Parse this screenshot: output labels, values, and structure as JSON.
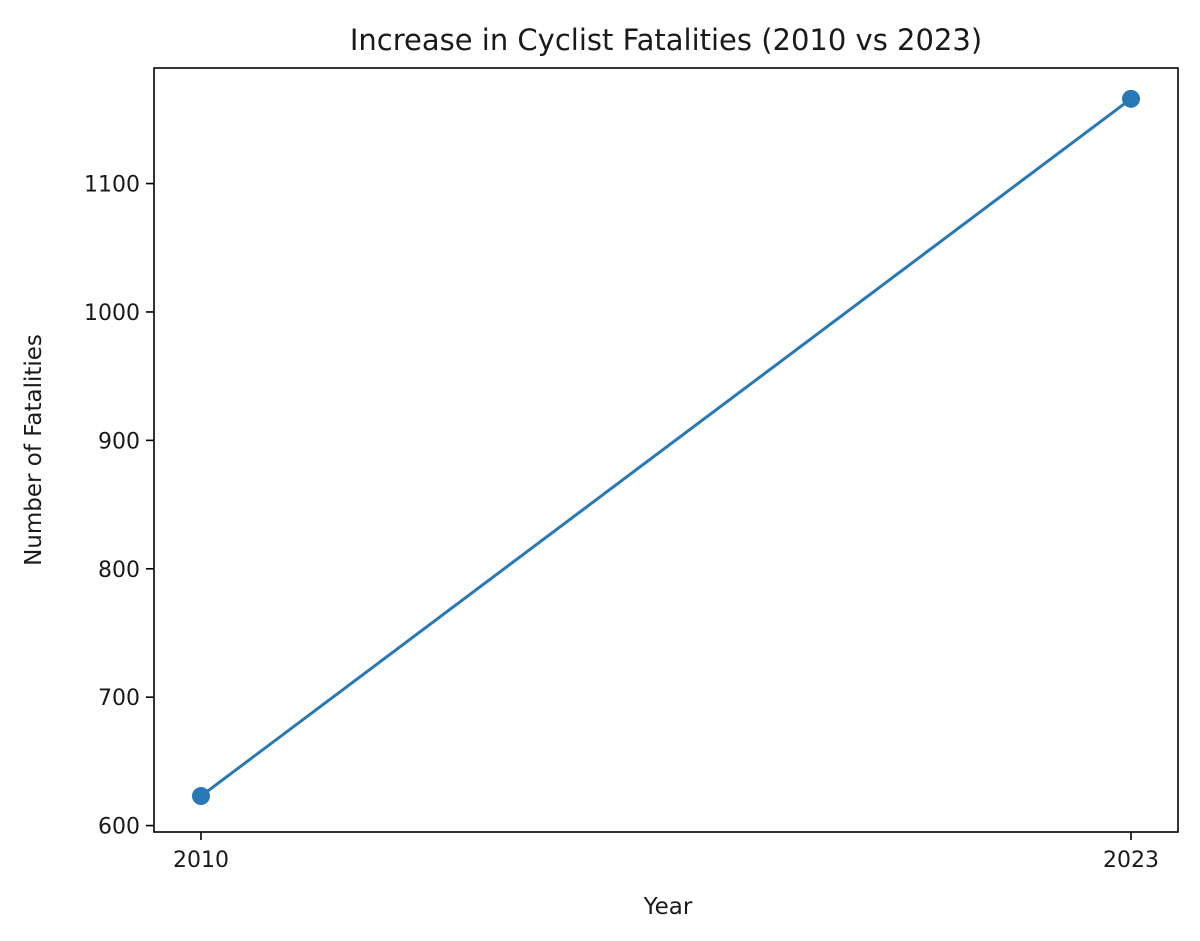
{
  "chart_data": {
    "type": "line",
    "title": "Increase in Cyclist Fatalities (2010 vs 2023)",
    "xlabel": "Year",
    "ylabel": "Number of Fatalities",
    "x": [
      "2010",
      "2023"
    ],
    "series": [
      {
        "values": [
          623,
          1166
        ],
        "color": "#2878b5",
        "marker": "circle"
      }
    ],
    "ylim": [
      595,
      1190
    ],
    "yticks": [
      600,
      700,
      800,
      900,
      1000,
      1100
    ],
    "grid": false
  }
}
